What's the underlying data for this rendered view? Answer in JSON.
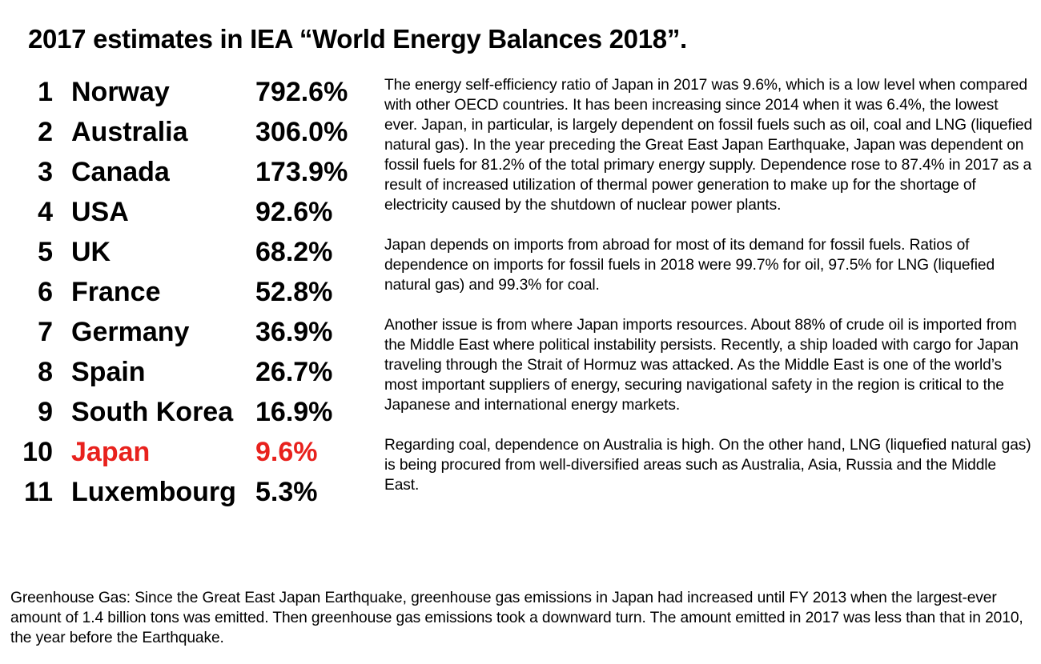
{
  "title": "2017 estimates in IEA “World Energy Balances 2018”.",
  "ranking": [
    {
      "rank": "1",
      "country": "Norway",
      "value": "792.6%"
    },
    {
      "rank": "2",
      "country": "Australia",
      "value": "306.0%"
    },
    {
      "rank": "3",
      "country": "Canada",
      "value": "173.9%"
    },
    {
      "rank": "4",
      "country": "USA",
      "value": "92.6%"
    },
    {
      "rank": "5",
      "country": "UK",
      "value": "68.2%"
    },
    {
      "rank": "6",
      "country": "France",
      "value": "52.8%"
    },
    {
      "rank": "7",
      "country": "Germany",
      "value": "36.9%"
    },
    {
      "rank": "8",
      "country": "Spain",
      "value": "26.7%"
    },
    {
      "rank": "9",
      "country": "South Korea",
      "value": "16.9%"
    },
    {
      "rank": "10",
      "country": "Japan",
      "value": "9.6%"
    },
    {
      "rank": "11",
      "country": "Luxembourg",
      "value": "5.3%"
    }
  ],
  "highlight_color": "#e8211d",
  "paragraphs": [
    "The energy self-efficiency ratio of Japan in 2017 was 9.6%, which is a low level when compared with other OECD countries. It has been increasing since 2014 when it was 6.4%, the lowest ever. Japan, in particular, is largely dependent on fossil fuels such as oil, coal and LNG (liquefied natural gas). In the year preceding the Great East Japan Earthquake, Japan was dependent on fossil fuels for 81.2% of the total primary energy supply. Dependence rose to 87.4% in 2017 as a result of increased utilization of thermal power generation to make up for the shortage of electricity caused by the shutdown of nuclear power plants.",
    "Japan depends on imports from abroad for most of its demand for fossil fuels. Ratios of dependence on imports for fossil fuels in 2018 were 99.7% for oil, 97.5% for LNG (liquefied natural gas) and 99.3% for coal.",
    "Another issue is from where Japan imports resources. About 88% of crude oil is imported from the Middle East where political instability persists. Recently, a ship loaded with cargo for Japan traveling through the Strait of Hormuz was attacked. As the Middle East is one of the world’s most important suppliers of energy, securing navigational safety in the region is critical to the Japanese and international energy markets.",
    "Regarding coal, dependence on Australia is high. On the other hand, LNG (liquefied natural gas) is being procured from well-diversified areas such as Australia, Asia, Russia and the Middle East."
  ],
  "footer": "Greenhouse Gas: Since the Great East Japan Earthquake, greenhouse gas emissions in Japan had increased until FY 2013 when the largest-ever amount of 1.4 billion tons was emitted. Then greenhouse gas emissions took a downward turn. The amount emitted in 2017 was less than that in 2010, the year before the Earthquake."
}
